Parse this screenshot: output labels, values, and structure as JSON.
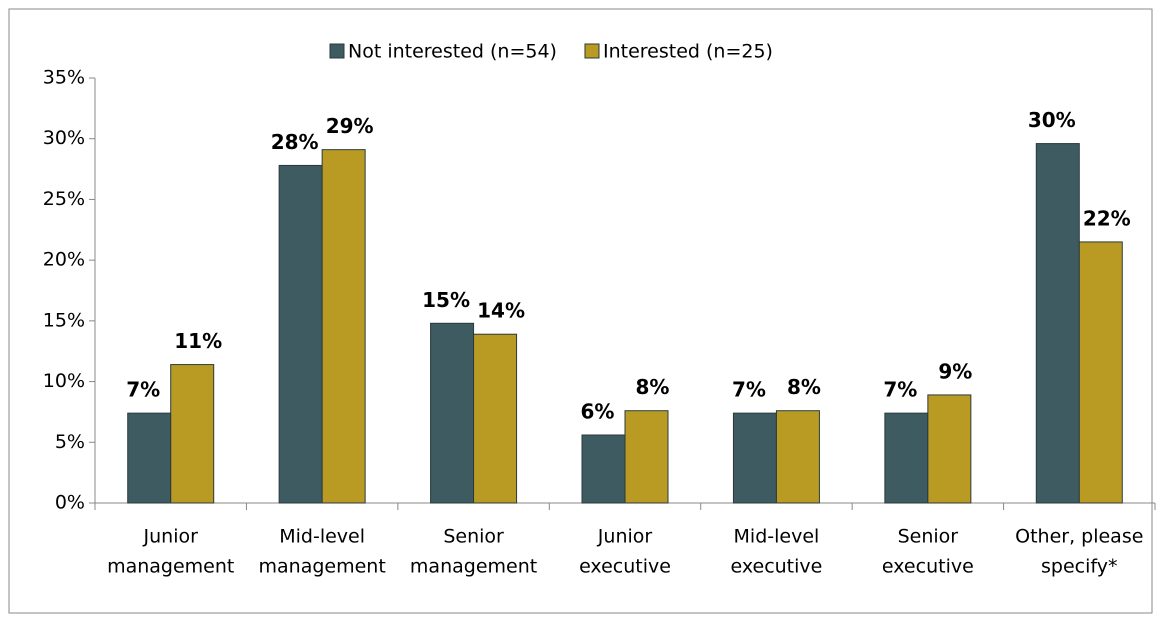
{
  "chart_data": {
    "type": "bar",
    "categories": [
      [
        "Junior",
        "management"
      ],
      [
        "Mid-level",
        "management"
      ],
      [
        "Senior",
        "management"
      ],
      [
        "Junior",
        "executive"
      ],
      [
        "Mid-level",
        "executive"
      ],
      [
        "Senior",
        "executive"
      ],
      [
        "Other, please",
        "specify*"
      ]
    ],
    "series": [
      {
        "name": "Not interested (n=54)",
        "color": "#3d5b61",
        "values": [
          7.4,
          27.8,
          14.8,
          5.6,
          7.4,
          7.4,
          29.6
        ],
        "value_labels": [
          "7%",
          "28%",
          "15%",
          "6%",
          "7%",
          "7%",
          "30%"
        ]
      },
      {
        "name": "Interested (n=25)",
        "color": "#b99b24",
        "values": [
          11.4,
          29.1,
          13.9,
          7.6,
          7.6,
          8.9,
          21.5
        ],
        "value_labels": [
          "11%",
          "29%",
          "14%",
          "8%",
          "8%",
          "9%",
          "22%"
        ]
      }
    ],
    "ylim": [
      0,
      35
    ],
    "yticks": [
      {
        "value": 0,
        "label": "0%"
      },
      {
        "value": 5,
        "label": "5%"
      },
      {
        "value": 10,
        "label": "10%"
      },
      {
        "value": 15,
        "label": "15%"
      },
      {
        "value": 20,
        "label": "20%"
      },
      {
        "value": 25,
        "label": "25%"
      },
      {
        "value": 30,
        "label": "30%"
      },
      {
        "value": 35,
        "label": "35%"
      }
    ],
    "grid": false,
    "legend": "top"
  }
}
